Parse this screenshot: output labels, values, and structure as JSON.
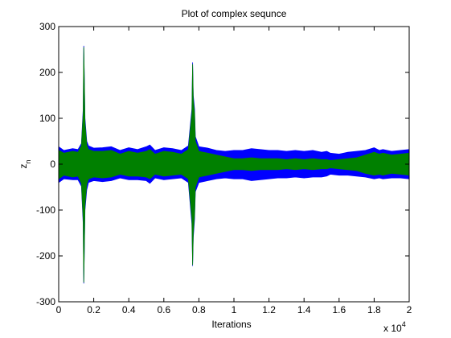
{
  "chart_data": {
    "type": "line",
    "title": "Plot of complex sequnce",
    "xlabel": "Iterations",
    "ylabel_main": "z",
    "ylabel_sub": "n",
    "x_multiplier_base": "x 10",
    "x_multiplier_exp": "4",
    "xlim": [
      0,
      20000
    ],
    "ylim": [
      -300,
      300
    ],
    "x_ticks": [
      0,
      2000,
      4000,
      6000,
      8000,
      10000,
      12000,
      14000,
      16000,
      18000,
      20000
    ],
    "x_tick_labels": [
      "0",
      "0.2",
      "0.4",
      "0.6",
      "0.8",
      "1",
      "1.2",
      "1.4",
      "1.6",
      "1.8",
      "2"
    ],
    "y_ticks": [
      -300,
      -200,
      -100,
      0,
      100,
      200,
      300
    ],
    "y_tick_labels": [
      "-300",
      "-200",
      "-100",
      "0",
      "100",
      "200",
      "300"
    ],
    "grid": false,
    "series": [
      {
        "color": "#0000ff",
        "envelope_x": [
          0,
          300,
          800,
          1100,
          1300,
          1400,
          1430,
          1460,
          1500,
          1600,
          1700,
          2000,
          2500,
          3000,
          3500,
          4000,
          4500,
          5000,
          5200,
          5500,
          6000,
          6500,
          7000,
          7400,
          7600,
          7640,
          7680,
          7750,
          7800,
          8000,
          8500,
          9000,
          9500,
          10000,
          10500,
          11000,
          11500,
          12000,
          12500,
          13000,
          13500,
          14000,
          14500,
          15000,
          15300,
          15500,
          16000,
          16500,
          17000,
          17500,
          18000,
          18300,
          18500,
          19000,
          19500,
          20000
        ],
        "envelope_upper": [
          38,
          30,
          34,
          32,
          45,
          120,
          258,
          200,
          100,
          50,
          40,
          35,
          36,
          38,
          30,
          36,
          32,
          38,
          42,
          30,
          36,
          34,
          30,
          40,
          120,
          222,
          150,
          120,
          60,
          38,
          35,
          30,
          28,
          30,
          30,
          34,
          32,
          30,
          30,
          28,
          30,
          28,
          30,
          26,
          28,
          24,
          22,
          26,
          28,
          30,
          36,
          30,
          32,
          28,
          30,
          32
        ],
        "envelope_lower": [
          -40,
          -32,
          -34,
          -34,
          -48,
          -130,
          -260,
          -200,
          -100,
          -56,
          -40,
          -36,
          -38,
          -36,
          -30,
          -34,
          -34,
          -36,
          -42,
          -30,
          -34,
          -32,
          -30,
          -40,
          -130,
          -222,
          -160,
          -120,
          -60,
          -40,
          -36,
          -32,
          -30,
          -32,
          -32,
          -36,
          -34,
          -32,
          -30,
          -30,
          -28,
          -30,
          -28,
          -28,
          -26,
          -22,
          -24,
          -24,
          -26,
          -28,
          -32,
          -30,
          -32,
          -30,
          -30,
          -32
        ]
      },
      {
        "color": "#008000",
        "envelope_x": [
          0,
          300,
          800,
          1100,
          1300,
          1400,
          1430,
          1460,
          1500,
          1600,
          1700,
          2000,
          2500,
          3000,
          3500,
          4000,
          4500,
          5000,
          5200,
          5500,
          6000,
          6500,
          7000,
          7400,
          7600,
          7640,
          7680,
          7750,
          7800,
          8000,
          8500,
          9000,
          9500,
          10000,
          10500,
          11000,
          11500,
          12000,
          12500,
          13000,
          13500,
          14000,
          14500,
          15000,
          15300,
          15500,
          16000,
          16500,
          17000,
          17500,
          18000,
          18300,
          18500,
          19000,
          19500,
          20000
        ],
        "envelope_upper": [
          30,
          24,
          28,
          26,
          40,
          110,
          255,
          190,
          90,
          42,
          32,
          28,
          28,
          30,
          22,
          28,
          24,
          28,
          32,
          22,
          28,
          26,
          22,
          32,
          110,
          218,
          140,
          110,
          50,
          28,
          24,
          20,
          16,
          12,
          12,
          14,
          12,
          12,
          12,
          10,
          12,
          10,
          12,
          10,
          10,
          8,
          10,
          12,
          14,
          20,
          26,
          22,
          24,
          20,
          22,
          24
        ],
        "envelope_lower": [
          -32,
          -24,
          -28,
          -26,
          -42,
          -120,
          -258,
          -190,
          -90,
          -44,
          -32,
          -28,
          -30,
          -28,
          -22,
          -26,
          -26,
          -28,
          -32,
          -22,
          -26,
          -24,
          -22,
          -32,
          -118,
          -220,
          -150,
          -110,
          -50,
          -28,
          -24,
          -20,
          -16,
          -12,
          -12,
          -14,
          -12,
          -12,
          -12,
          -10,
          -12,
          -10,
          -12,
          -10,
          -10,
          -8,
          -10,
          -12,
          -14,
          -20,
          -24,
          -22,
          -24,
          -20,
          -22,
          -24
        ]
      }
    ]
  }
}
